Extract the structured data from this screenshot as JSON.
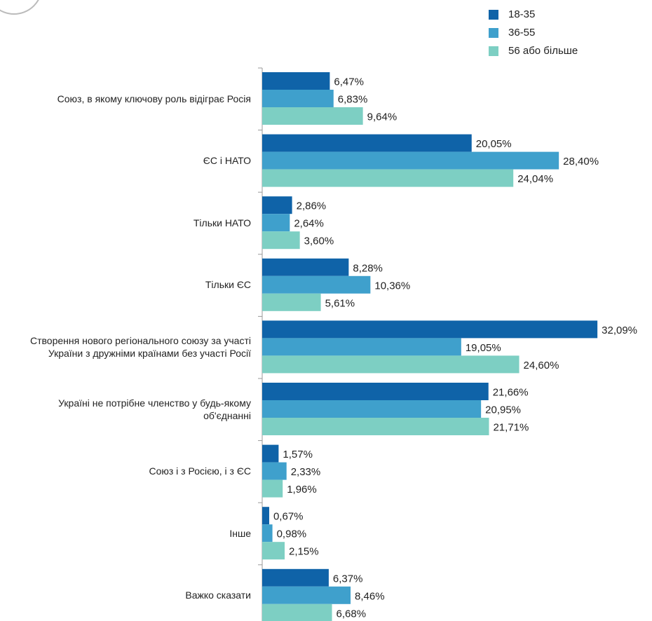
{
  "chart_data": {
    "type": "hbar",
    "categories": [
      "Союз, в якому ключову роль відіграє Росія",
      "ЄС і НАТО",
      "Тільки НАТО",
      "Тільки ЄС",
      "Створення нового регіонального союзу за участі України з дружніми країнами без участі Росії",
      "Україні не потрібне членство у будь-якому об'єднанні",
      "Союз і з Росією, і з ЄС",
      "Інше",
      "Важко сказати"
    ],
    "series": [
      {
        "name": "18-35",
        "color": "#0f63a8",
        "values": [
          6.47,
          20.05,
          2.86,
          8.28,
          32.09,
          21.66,
          1.57,
          0.67,
          6.37
        ],
        "value_labels": [
          "6,47%",
          "20,05%",
          "2,86%",
          "8,28%",
          "32,09%",
          "21,66%",
          "1,57%",
          "0,67%",
          "6,37%"
        ]
      },
      {
        "name": "36-55",
        "color": "#3fa0cc",
        "values": [
          6.83,
          28.4,
          2.64,
          10.36,
          19.05,
          20.95,
          2.33,
          0.98,
          8.46
        ],
        "value_labels": [
          "6,83%",
          "28,40%",
          "2,64%",
          "10,36%",
          "19,05%",
          "20,95%",
          "2,33%",
          "0,98%",
          "8,46%"
        ]
      },
      {
        "name": "56 або більше",
        "color": "#7dcfc3",
        "values": [
          9.64,
          24.04,
          3.6,
          5.61,
          24.6,
          21.71,
          1.96,
          2.15,
          6.68
        ],
        "value_labels": [
          "9,64%",
          "24,04%",
          "3,60%",
          "5,61%",
          "24,60%",
          "21,71%",
          "1,96%",
          "2,15%",
          "6,68%"
        ]
      }
    ],
    "xlim": [
      0,
      35
    ]
  }
}
